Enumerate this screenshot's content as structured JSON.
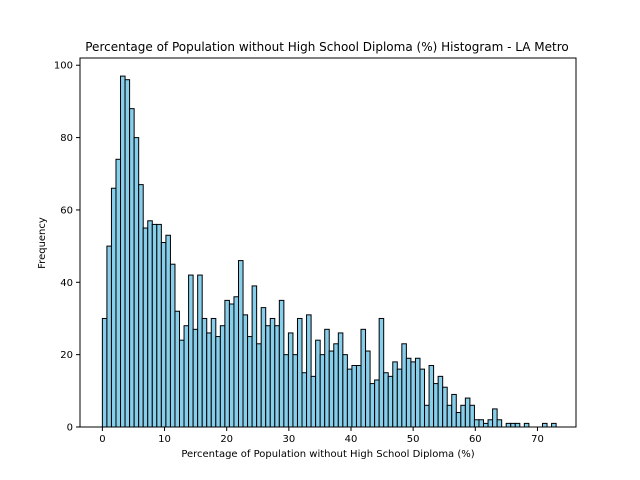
{
  "chart_data": {
    "type": "bar",
    "title": "Percentage of Population without High School Diploma (%) Histogram - LA Metro",
    "xlabel": "Percentage of Population without High School Diploma (%)",
    "ylabel": "Frequency",
    "xlim": [
      -3.6,
      76.2
    ],
    "ylim": [
      0,
      102
    ],
    "bin_start": 0,
    "bin_width": 0.73,
    "xticks": [
      0,
      10,
      20,
      30,
      40,
      50,
      60,
      70
    ],
    "yticks": [
      0,
      20,
      40,
      60,
      80,
      100
    ],
    "grid": false,
    "values": [
      30,
      50,
      66,
      74,
      97,
      96,
      88,
      80,
      67,
      55,
      57,
      56,
      56,
      51,
      53,
      45,
      32,
      24,
      28,
      42,
      27,
      42,
      30,
      26,
      30,
      25,
      28,
      35,
      34,
      36,
      46,
      31,
      25,
      39,
      23,
      33,
      28,
      30,
      28,
      35,
      20,
      26,
      20,
      30,
      15,
      31,
      14,
      24,
      20,
      27,
      21,
      23,
      26,
      20,
      16,
      17,
      17,
      27,
      21,
      12,
      13,
      30,
      15,
      14,
      18,
      16,
      23,
      19,
      18,
      19,
      16,
      6,
      17,
      12,
      14,
      11,
      6,
      9,
      4,
      6,
      8,
      6,
      2,
      2,
      1,
      2,
      5,
      2,
      0,
      1,
      1,
      1,
      0,
      1,
      0,
      0,
      0,
      1,
      0,
      1
    ]
  }
}
